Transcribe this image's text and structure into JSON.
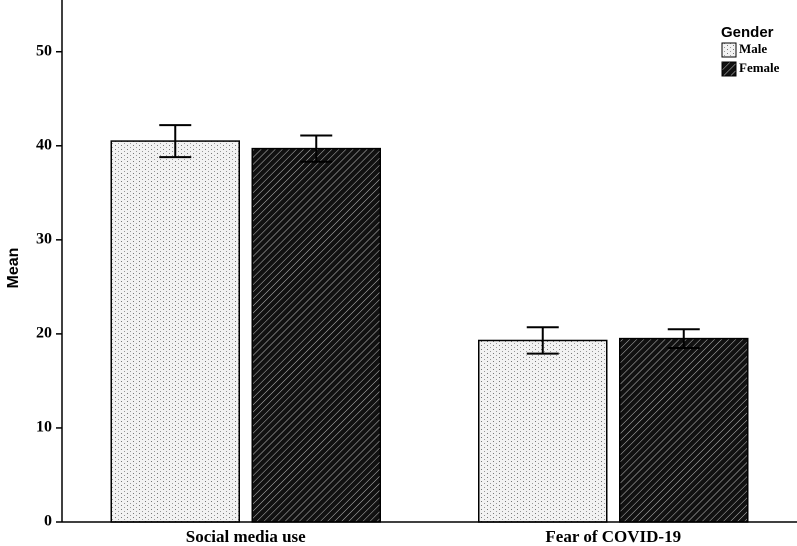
{
  "chart_data": {
    "type": "bar",
    "y_label": "Mean",
    "legend_title": "Gender",
    "legend_position": "upper right",
    "categories": [
      "Social media use",
      "Fear of COVID-19"
    ],
    "series": [
      {
        "name": "Male",
        "color": "#f2f2f2",
        "pattern": "dots",
        "values": [
          40.5,
          19.3
        ],
        "errors": [
          1.7,
          1.4
        ]
      },
      {
        "name": "Female",
        "color": "#111111",
        "pattern": "hatch",
        "values": [
          39.7,
          19.5
        ],
        "errors": [
          1.4,
          1.0
        ]
      }
    ],
    "ylim": [
      0,
      55.5
    ],
    "yticks": [
      0,
      10,
      20,
      30,
      40,
      50
    ],
    "grid": false
  }
}
